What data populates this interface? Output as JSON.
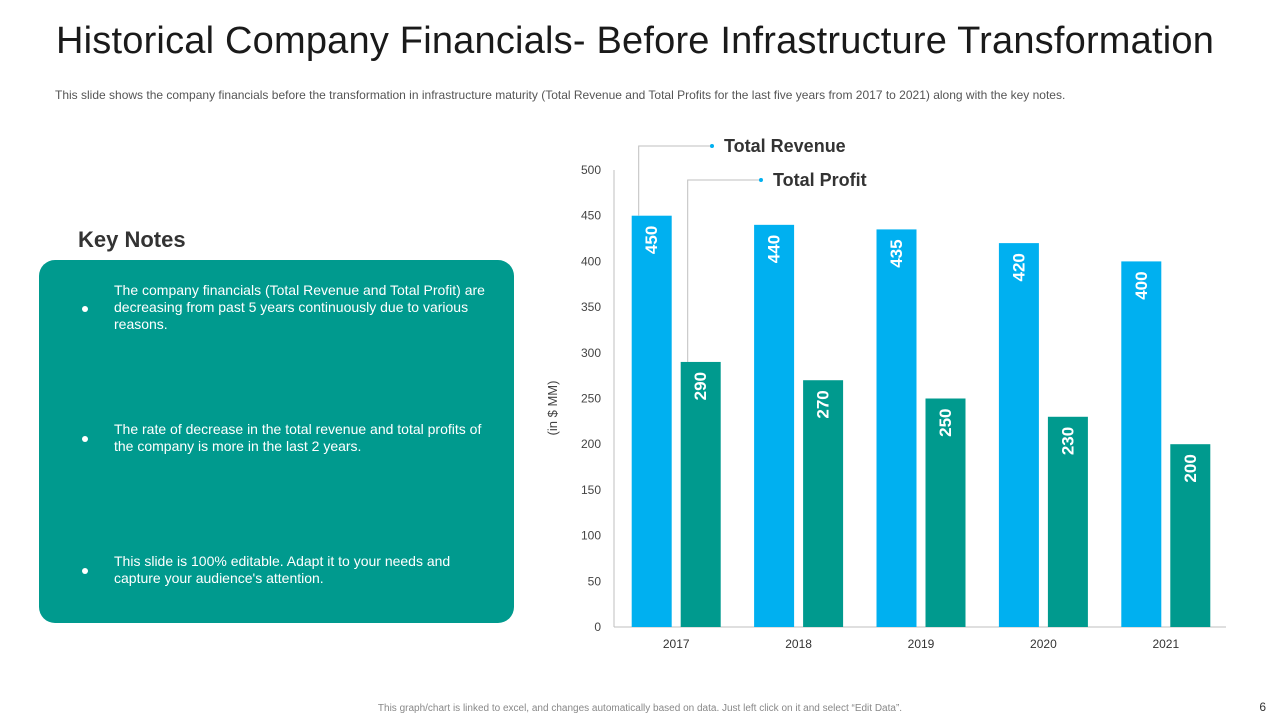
{
  "slide": {
    "title": "Historical Company Financials- Before Infrastructure Transformation",
    "subtitle": "This slide shows the company financials before the transformation in infrastructure maturity (Total Revenue  and Total Profits for the last five  years from 2017 to 2021) along with the key notes.",
    "footer": "This graph/chart is linked to excel, and changes automatically based on data. Just left click on it and select “Edit Data”.",
    "page_number": "6"
  },
  "key_notes": {
    "heading": "Key Notes",
    "items": [
      "The company financials (Total Revenue and Total Profit) are decreasing from past 5 years continuously due to various reasons.",
      "The rate of decrease in the total revenue and total profits of the company is more in the last 2 years.",
      "This slide is 100% editable. Adapt it to your needs and capture your audience's attention."
    ],
    "box_color": "#009a8e"
  },
  "chart_data": {
    "type": "bar",
    "categories": [
      "2017",
      "2018",
      "2019",
      "2020",
      "2021"
    ],
    "series": [
      {
        "name": "Total Revenue",
        "values": [
          450,
          440,
          435,
          420,
          400
        ],
        "color": "#00b0f0"
      },
      {
        "name": "Total Profit",
        "values": [
          290,
          270,
          250,
          230,
          200
        ],
        "color": "#009a8e"
      }
    ],
    "ylabel": "(in $ MM)",
    "xlabel": "",
    "ylim": [
      0,
      500
    ],
    "yticks": [
      0,
      50,
      100,
      150,
      200,
      250,
      300,
      350,
      400,
      450,
      500
    ],
    "grid": false,
    "legend": "top-left, callout labels",
    "data_labels": true
  }
}
